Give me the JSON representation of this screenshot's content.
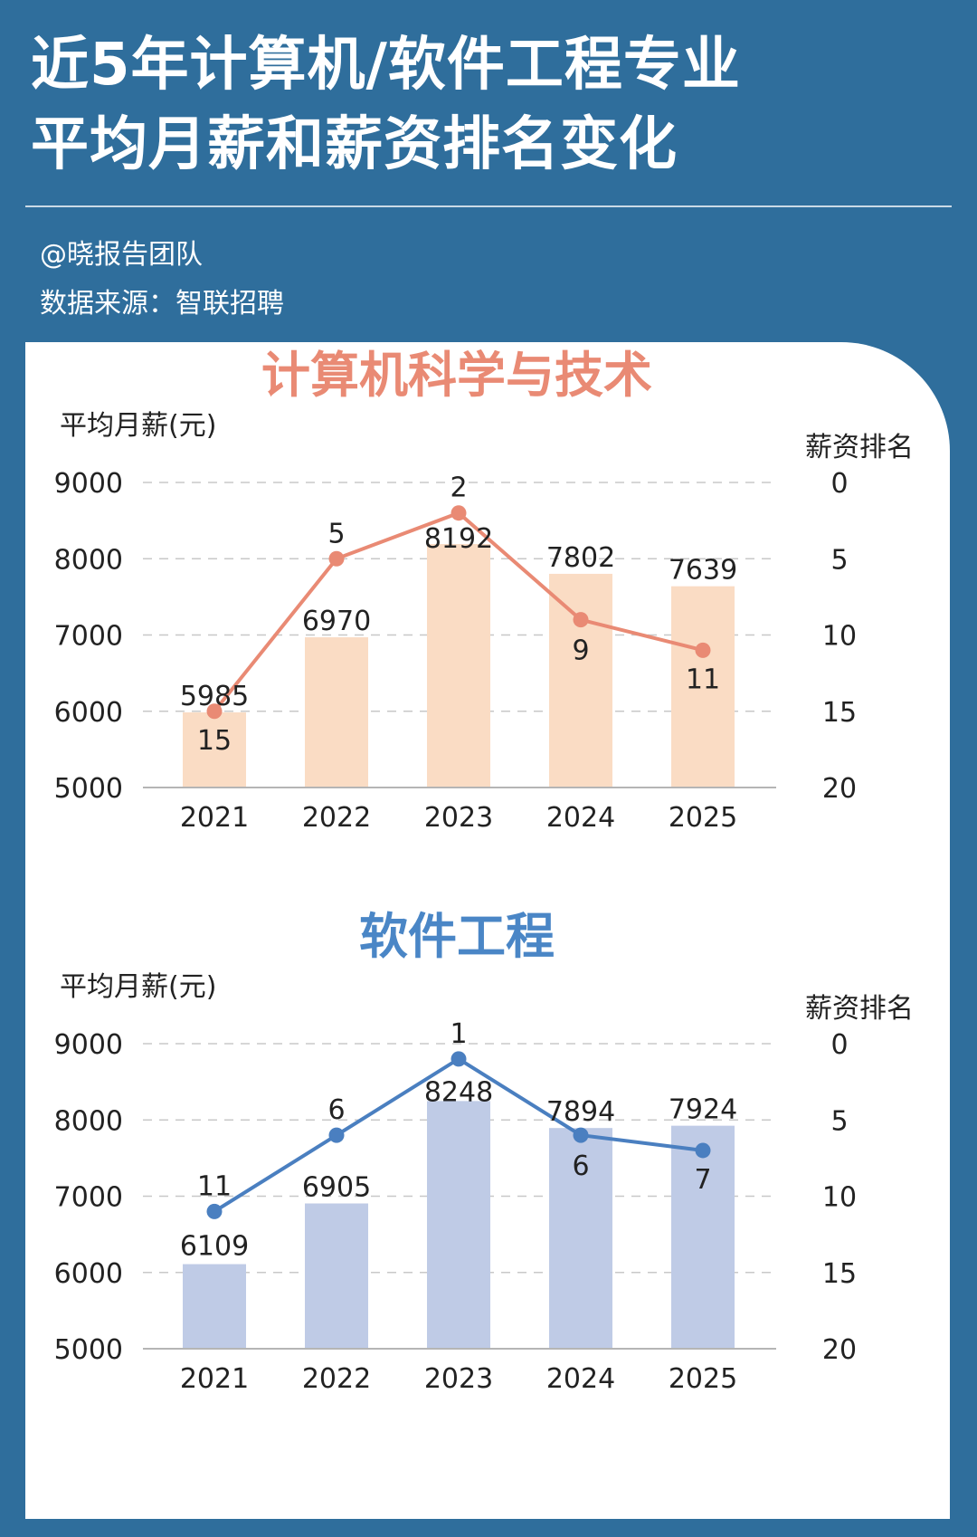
{
  "header": {
    "title_line1": "近5年计算机/软件工程专业",
    "title_line2": "平均月薪和薪资排名变化",
    "credit": "@晓报告团队",
    "source": "数据来源：智联招聘"
  },
  "chart_data": [
    {
      "type": "bar",
      "title": "计算机科学与技术",
      "ylabel": "平均月薪(元)",
      "y2label": "薪资排名",
      "categories": [
        "2021",
        "2022",
        "2023",
        "2024",
        "2025"
      ],
      "ylim": [
        5000,
        9000
      ],
      "yticks": [
        "9000",
        "8000",
        "7000",
        "6000",
        "5000"
      ],
      "y2lim": [
        0,
        20
      ],
      "y2ticks": [
        "0",
        "5",
        "10",
        "15",
        "20"
      ],
      "y2_inverted": true,
      "grid": true,
      "series": [
        {
          "type": "bar",
          "values": [
            5985,
            6970,
            8192,
            7802,
            7639
          ],
          "labels": [
            "5985",
            "6970",
            "8192",
            "7802",
            "7639"
          ],
          "color": "#fadcc4"
        },
        {
          "type": "line",
          "axis": "right",
          "values": [
            15,
            5,
            2,
            9,
            11
          ],
          "labels": [
            "15",
            "5",
            "2",
            "9",
            "11"
          ],
          "color": "#e98a74"
        }
      ],
      "title_color": "#e98a74"
    },
    {
      "type": "bar",
      "title": "软件工程",
      "ylabel": "平均月薪(元)",
      "y2label": "薪资排名",
      "categories": [
        "2021",
        "2022",
        "2023",
        "2024",
        "2025"
      ],
      "ylim": [
        5000,
        9000
      ],
      "yticks": [
        "9000",
        "8000",
        "7000",
        "6000",
        "5000"
      ],
      "y2lim": [
        0,
        20
      ],
      "y2ticks": [
        "0",
        "5",
        "10",
        "15",
        "20"
      ],
      "y2_inverted": true,
      "grid": true,
      "series": [
        {
          "type": "bar",
          "values": [
            6109,
            6905,
            8248,
            7894,
            7924
          ],
          "labels": [
            "6109",
            "6905",
            "8248",
            "7894",
            "7924"
          ],
          "color": "#bfcbe6"
        },
        {
          "type": "line",
          "axis": "right",
          "values": [
            11,
            6,
            1,
            6,
            7
          ],
          "labels": [
            "11",
            "6",
            "1",
            "6",
            "7"
          ],
          "color": "#4a7fc0"
        }
      ],
      "title_color": "#4a86c6"
    }
  ]
}
